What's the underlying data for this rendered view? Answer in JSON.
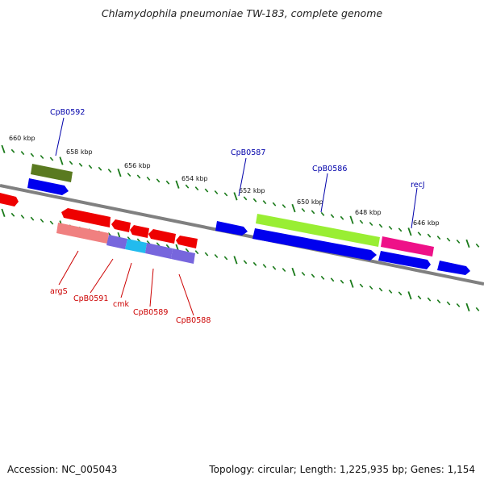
{
  "title": "Chlamydophila pneumoniae TW-183, complete genome",
  "accession_text": "Accession: NC_005043",
  "summary_text": "Topology: circular; Length: 1,225,935 bp; Genes: 1,154",
  "colors": {
    "backbone": "#808080",
    "tick": "#1a7a1a",
    "forward_label": "#0000aa",
    "reverse_label": "#cc0000"
  },
  "ticks": [
    {
      "kbp": 646,
      "label": "646 kbp"
    },
    {
      "kbp": 648,
      "label": "648 kbp"
    },
    {
      "kbp": 650,
      "label": "650 kbp"
    },
    {
      "kbp": 652,
      "label": "652 kbp"
    },
    {
      "kbp": 654,
      "label": "654 kbp"
    },
    {
      "kbp": 656,
      "label": "656 kbp"
    },
    {
      "kbp": 658,
      "label": "658 kbp"
    },
    {
      "kbp": 660,
      "label": "660 kbp"
    }
  ],
  "forward_labels": [
    "CpB0592",
    "CpB0587",
    "CpB0586",
    "recJ"
  ],
  "reverse_labels": [
    "argS",
    "CpB0591",
    "cmk",
    "CpB0589",
    "CpB0588"
  ]
}
